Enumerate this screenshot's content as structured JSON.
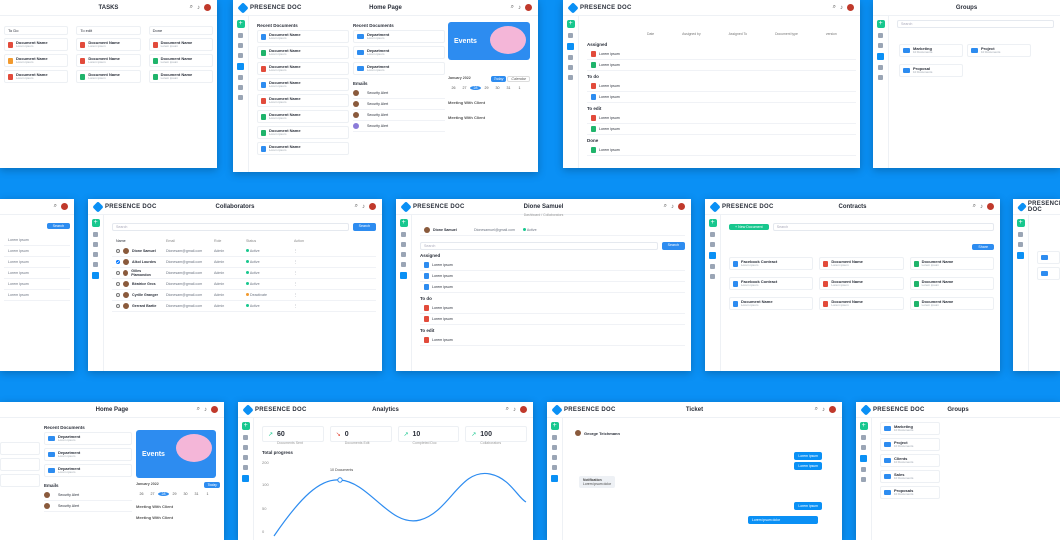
{
  "brand": "PRESENCE DOC",
  "colors": {
    "background": "#0a90f5",
    "accent": "#2d8cf0",
    "new": "#18c78e"
  },
  "tasks": {
    "title": "TASKS",
    "columns": [
      "To Do",
      "To edit",
      "Done"
    ],
    "card_label": "Document Name"
  },
  "home": {
    "title": "Home Page",
    "recent_docs": "Recent Documents",
    "doc_label": "Document Name",
    "dept_label": "Department",
    "events": "Events",
    "month": "January 2022",
    "days": [
      "26",
      "27",
      "28",
      "29",
      "30",
      "31",
      "1"
    ],
    "emails": "Emails",
    "meeting": "Meeting With Client",
    "sender": "Security Alert",
    "btn_today": "Today",
    "btn_calendar": "Calendar"
  },
  "ticket_tasks": {
    "groups": [
      "Assigned",
      "To do",
      "To edit",
      "Done"
    ],
    "item": "Lorem ipsum",
    "headers": [
      "Date",
      "Assigned by",
      "Assigned To",
      "Document type",
      "version"
    ]
  },
  "groups": {
    "title": "Groups",
    "items": [
      "Marketing",
      "Project",
      "Proposal",
      "Clients",
      "Sales",
      "Proposals"
    ],
    "meta": "10 Documents"
  },
  "collaborators": {
    "title": "Collaborators",
    "search_btn": "Search",
    "headers": [
      "Name",
      "Email",
      "Role",
      "Status",
      "Action"
    ],
    "rows": [
      {
        "name": "Dione Samuel",
        "email": "Dionesam@gmail.com",
        "role": "Admin",
        "status": "Active"
      },
      {
        "name": "Alkol Lourdes",
        "email": "Dionesam@gmail.com",
        "role": "Admin",
        "status": "Active"
      },
      {
        "name": "Gilles Plamondon",
        "email": "Dionesam@gmail.com",
        "role": "Admin",
        "status": "Active"
      },
      {
        "name": "Béatrice Gros",
        "email": "Dionesam@gmail.com",
        "role": "Admin",
        "status": "Active"
      },
      {
        "name": "Cyrille Granger",
        "email": "Dionesam@gmail.com",
        "role": "Admin",
        "status": "Deactivate"
      },
      {
        "name": "Gerrard Bartie",
        "email": "Dionesam@gmail.com",
        "role": "Admin",
        "status": "Active"
      }
    ]
  },
  "profile": {
    "title": "Dione Samuel",
    "subtitle": "Dashboard / Collaborators",
    "email": "Dionesamuel@gmail.com",
    "status": "Active",
    "search_btn": "Search",
    "sections": [
      "Assigned",
      "To do",
      "To edit"
    ]
  },
  "contracts": {
    "title": "Contracts",
    "new_btn": "New Document",
    "share_btn": "Share",
    "items": [
      "Facebook Contract",
      "Document Name",
      "Document Name",
      "Facebook Contract",
      "Document Name",
      "Document Name",
      "Document Name",
      "Document Name",
      "Document Name"
    ]
  },
  "analytics": {
    "title": "Analytics",
    "stats": [
      {
        "value": "60",
        "label": "Documents Sent",
        "color": "#18c78e"
      },
      {
        "value": "0",
        "label": "Documents Edit",
        "color": "#e24b3b"
      },
      {
        "value": "10",
        "label": "Completed Doc",
        "color": "#18c78e"
      },
      {
        "value": "100",
        "label": "Collaborators",
        "color": "#18c78e"
      }
    ],
    "chart_title": "Total progress",
    "tooltip": "10 Documents",
    "y_ticks": [
      "200",
      "150",
      "100",
      "50",
      "0"
    ]
  },
  "ticket": {
    "title": "Ticket",
    "contact": "George Teichmann",
    "notif": "Notification",
    "msg_in": "Lorem ipsum dolor",
    "msg_out": "Lorem ipsum"
  },
  "chart_data": null
}
